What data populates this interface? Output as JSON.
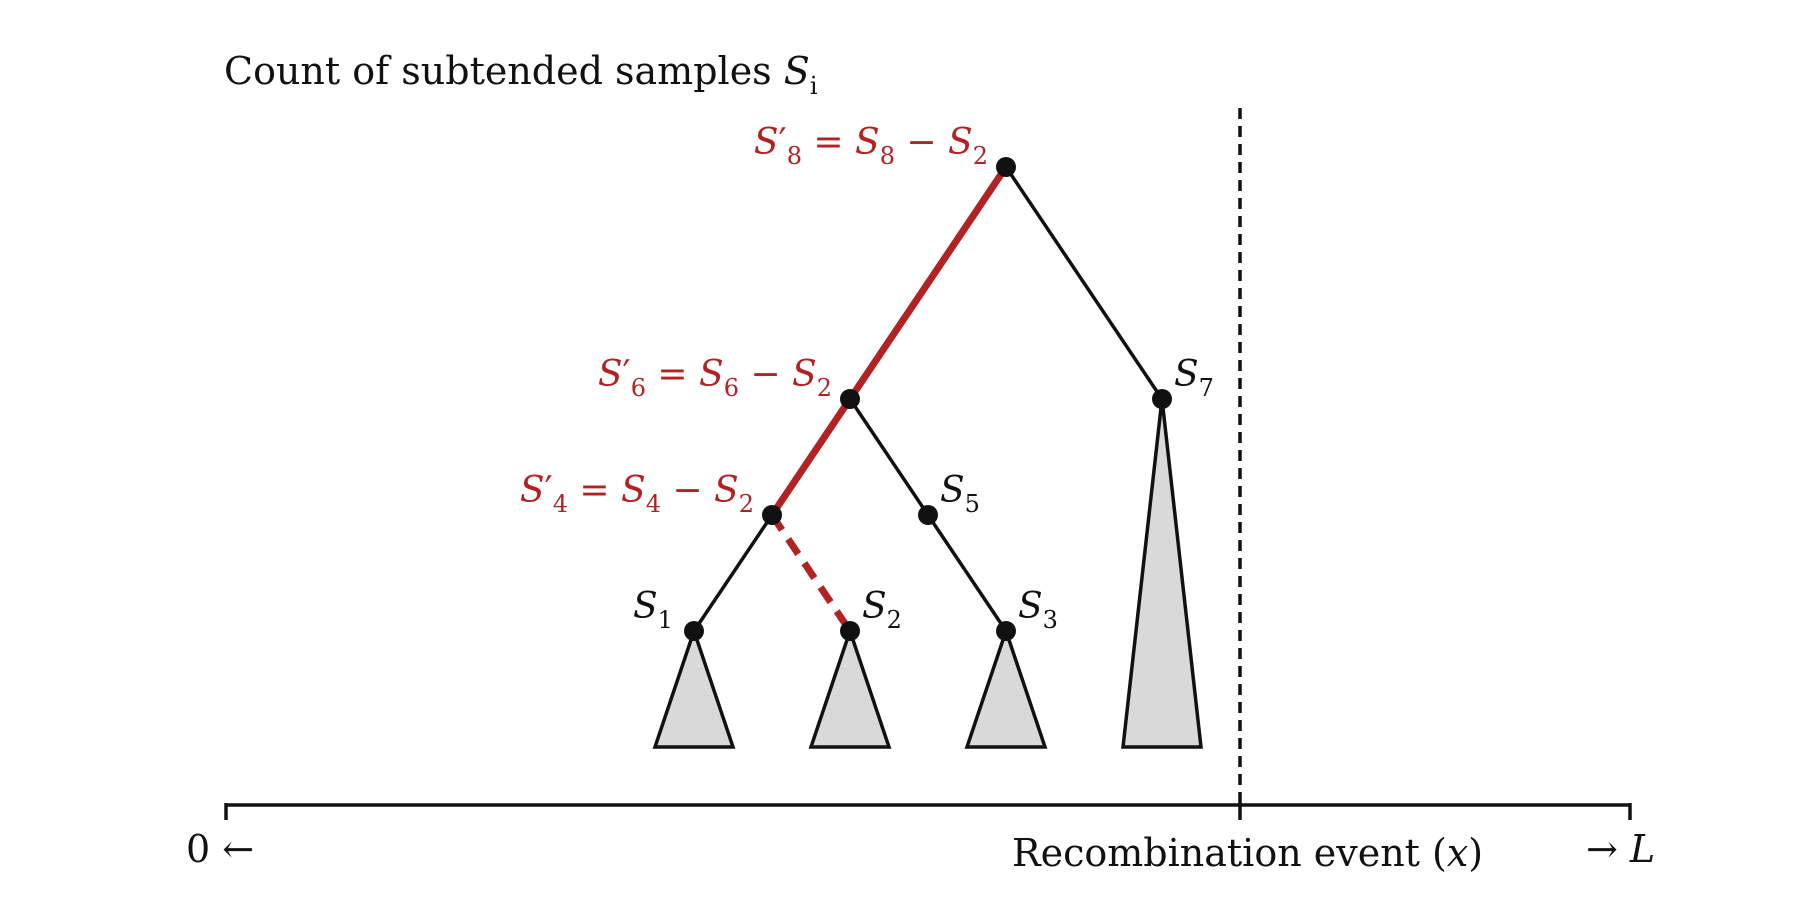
{
  "title": {
    "prefix": "Count of subtended samples ",
    "var": "S",
    "sub": "i"
  },
  "colors": {
    "ink": "#111111",
    "highlight": "#b22222",
    "subtree_fill": "#d9d9d9"
  },
  "nodes": {
    "n8": {
      "red": true,
      "label": {
        "v": "S",
        "prime": true,
        "s": "8",
        "eq": " = ",
        "rv": "S",
        "rs": "8",
        "op": " − ",
        "tv": "S",
        "ts": "2"
      }
    },
    "n6": {
      "red": true,
      "label": {
        "v": "S",
        "prime": true,
        "s": "6",
        "eq": " = ",
        "rv": "S",
        "rs": "6",
        "op": " − ",
        "tv": "S",
        "ts": "2"
      }
    },
    "n4": {
      "red": true,
      "label": {
        "v": "S",
        "prime": true,
        "s": "4",
        "eq": " = ",
        "rv": "S",
        "rs": "4",
        "op": " − ",
        "tv": "S",
        "ts": "2"
      }
    },
    "n7": {
      "red": false,
      "label": {
        "v": "S",
        "s": "7"
      }
    },
    "n5": {
      "red": false,
      "label": {
        "v": "S",
        "s": "5"
      }
    },
    "n1": {
      "red": false,
      "label": {
        "v": "S",
        "s": "1"
      }
    },
    "n2": {
      "red": false,
      "label": {
        "v": "S",
        "s": "2"
      }
    },
    "n3": {
      "red": false,
      "label": {
        "v": "S",
        "s": "3"
      }
    }
  },
  "axis": {
    "left_label": "0 ←",
    "event_label_prefix": "Recombination event (",
    "event_label_var": "x",
    "event_label_suffix": ")",
    "right_label_arrow": "→ ",
    "right_label_var": "L"
  }
}
